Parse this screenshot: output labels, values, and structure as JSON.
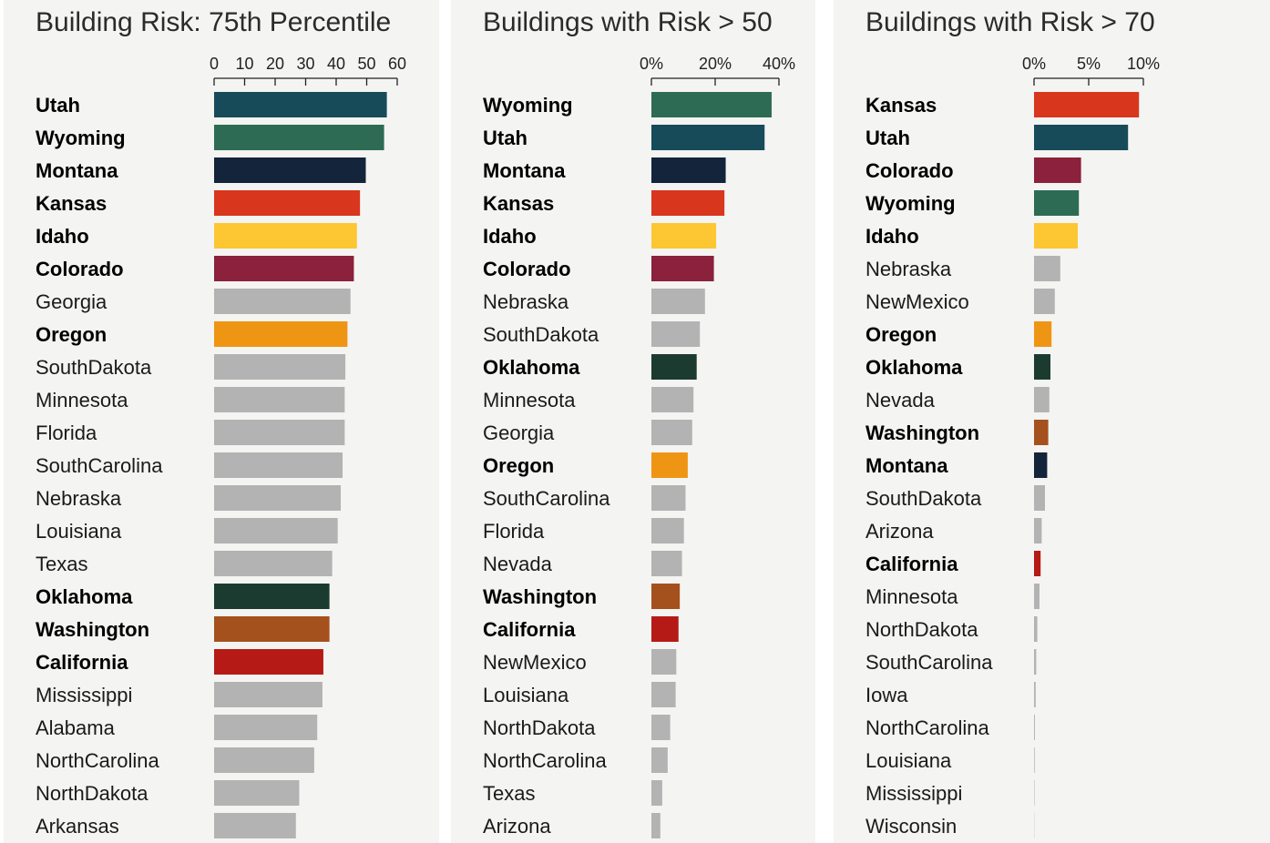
{
  "colors": {
    "Utah": "#174b5a",
    "Wyoming": "#2d6b54",
    "Montana": "#14243a",
    "Kansas": "#d9361e",
    "Idaho": "#fdc633",
    "Colorado": "#8b213c",
    "Oregon": "#ef9514",
    "Oklahoma": "#1b3b31",
    "Washington": "#a5511e",
    "California": "#b51a16",
    "default": "#b3b3b3"
  },
  "highlight_states": [
    "Utah",
    "Wyoming",
    "Montana",
    "Kansas",
    "Idaho",
    "Colorado",
    "Oregon",
    "Oklahoma",
    "Washington",
    "California"
  ],
  "chart_data": [
    {
      "type": "bar",
      "orientation": "horizontal",
      "title": "Building Risk: 75th Percentile",
      "xlim": [
        0,
        60
      ],
      "ticks": [
        0,
        10,
        20,
        30,
        40,
        50,
        60
      ],
      "tick_labels": [
        "0",
        "10",
        "20",
        "30",
        "40",
        "50",
        "60"
      ],
      "categories": [
        "Utah",
        "Wyoming",
        "Montana",
        "Kansas",
        "Idaho",
        "Colorado",
        "Georgia",
        "Oregon",
        "SouthDakota",
        "Minnesota",
        "Florida",
        "SouthCarolina",
        "Nebraska",
        "Louisiana",
        "Texas",
        "Oklahoma",
        "Washington",
        "California",
        "Mississippi",
        "Alabama",
        "NorthCarolina",
        "NorthDakota",
        "Arkansas"
      ],
      "values": [
        56.6,
        55.7,
        49.7,
        47.8,
        46.8,
        45.8,
        44.7,
        43.7,
        43.0,
        42.8,
        42.8,
        42.1,
        41.5,
        40.5,
        38.7,
        37.8,
        37.8,
        35.8,
        35.5,
        33.8,
        32.8,
        27.9,
        26.8
      ]
    },
    {
      "type": "bar",
      "orientation": "horizontal",
      "title": "Buildings with Risk > 50",
      "xlim": [
        0,
        40
      ],
      "ticks": [
        0,
        20,
        40
      ],
      "tick_labels": [
        "0%",
        "20%",
        "40%"
      ],
      "categories": [
        "Wyoming",
        "Utah",
        "Montana",
        "Kansas",
        "Idaho",
        "Colorado",
        "Nebraska",
        "SouthDakota",
        "Oklahoma",
        "Minnesota",
        "Georgia",
        "Oregon",
        "SouthCarolina",
        "Florida",
        "Nevada",
        "Washington",
        "California",
        "NewMexico",
        "Louisiana",
        "NorthDakota",
        "NorthCarolina",
        "Texas",
        "Arizona"
      ],
      "values": [
        37.7,
        35.5,
        23.3,
        22.9,
        20.3,
        19.6,
        16.8,
        15.2,
        14.2,
        13.2,
        12.8,
        11.4,
        10.7,
        10.2,
        9.6,
        8.9,
        8.5,
        7.8,
        7.6,
        5.9,
        5.1,
        3.4,
        2.8
      ]
    },
    {
      "type": "bar",
      "orientation": "horizontal",
      "title": "Buildings with Risk > 70",
      "xlim": [
        0,
        10
      ],
      "ticks": [
        0,
        5,
        10
      ],
      "tick_labels": [
        "0%",
        "5%",
        "10%"
      ],
      "categories": [
        "Kansas",
        "Utah",
        "Colorado",
        "Wyoming",
        "Idaho",
        "Nebraska",
        "NewMexico",
        "Oregon",
        "Oklahoma",
        "Nevada",
        "Washington",
        "Montana",
        "SouthDakota",
        "Arizona",
        "California",
        "Minnesota",
        "NorthDakota",
        "SouthCarolina",
        "Iowa",
        "NorthCarolina",
        "Louisiana",
        "Mississippi",
        "Wisconsin"
      ],
      "values": [
        9.6,
        8.6,
        4.3,
        4.1,
        4.0,
        2.4,
        1.9,
        1.6,
        1.5,
        1.4,
        1.3,
        1.2,
        1.0,
        0.7,
        0.6,
        0.5,
        0.3,
        0.2,
        0.15,
        0.08,
        0.06,
        0.04,
        0.02
      ]
    }
  ]
}
